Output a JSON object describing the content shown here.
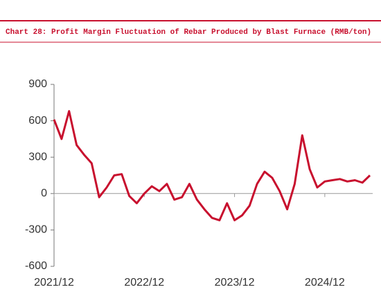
{
  "chart_data": {
    "type": "line",
    "title": "Chart 28: Profit Margin Fluctuation of Rebar Produced by Blast Furnace (RMB/ton)",
    "categories": [
      "2021/12",
      null,
      null,
      null,
      null,
      null,
      null,
      null,
      null,
      null,
      null,
      null,
      "2022/12",
      null,
      null,
      null,
      null,
      null,
      null,
      null,
      null,
      null,
      null,
      null,
      "2023/12",
      null,
      null,
      null,
      null,
      null,
      null,
      null,
      null,
      null,
      null,
      null,
      "2024/12",
      null,
      null,
      null,
      null,
      null,
      null
    ],
    "series": [
      {
        "color": "#c8102e",
        "values": [
          610,
          450,
          680,
          400,
          320,
          250,
          -30,
          50,
          150,
          160,
          -20,
          -80,
          0,
          60,
          20,
          80,
          -50,
          -30,
          80,
          -50,
          -130,
          -200,
          -220,
          -80,
          -220,
          -180,
          -100,
          80,
          180,
          130,
          20,
          -130,
          80,
          480,
          200,
          50,
          100,
          110,
          120,
          100,
          110,
          90,
          150
        ]
      }
    ],
    "ylim": [
      -600,
      900
    ],
    "yticks": [
      -600,
      -300,
      0,
      300,
      600,
      900
    ]
  }
}
